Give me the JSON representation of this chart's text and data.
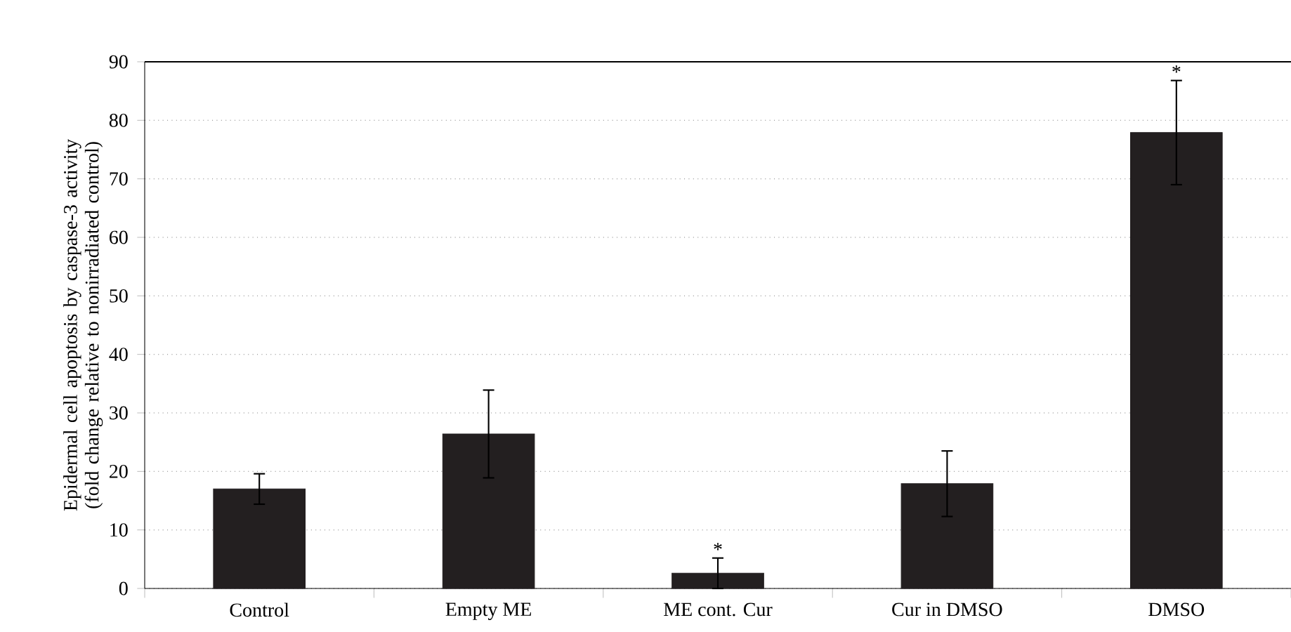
{
  "chart_data": {
    "type": "bar",
    "ylabel": "Epidermal cell apoptosis by caspase-3 activity (fold change relative to nonirradiated control)",
    "categories": [
      "Control",
      "Empty ME",
      "ME cont. Cur",
      "Cur in DMSO",
      "DMSO"
    ],
    "values": [
      17.0,
      26.4,
      2.6,
      17.9,
      77.9
    ],
    "errors": [
      2.6,
      7.5,
      2.6,
      5.6,
      8.9
    ],
    "color": "#231f20",
    "ylim": [
      0,
      90
    ],
    "yticks": [
      0,
      10,
      20,
      30,
      40,
      50,
      60,
      70,
      80,
      90
    ],
    "grid": "y",
    "annotations": [
      {
        "text": "*",
        "x": "ME cont. Cur",
        "y": 5.2
      },
      {
        "text": "*",
        "x": "DMSO",
        "y": 86.8
      }
    ]
  }
}
